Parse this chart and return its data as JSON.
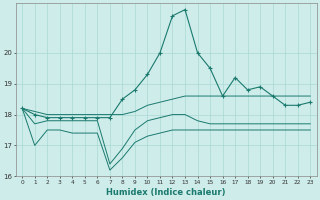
{
  "xlabel": "Humidex (Indice chaleur)",
  "x": [
    0,
    1,
    2,
    3,
    4,
    5,
    6,
    7,
    8,
    9,
    10,
    11,
    12,
    13,
    14,
    15,
    16,
    17,
    18,
    19,
    20,
    21,
    22,
    23
  ],
  "y_main": [
    18.2,
    18.0,
    17.9,
    17.9,
    17.9,
    17.9,
    17.9,
    17.9,
    18.5,
    18.8,
    19.3,
    20.0,
    21.2,
    21.4,
    20.0,
    19.5,
    18.6,
    19.2,
    18.8,
    18.9,
    18.6,
    18.3,
    18.3,
    18.4
  ],
  "y_lo1": [
    18.2,
    17.7,
    17.8,
    17.8,
    17.8,
    17.8,
    17.8,
    16.4,
    16.9,
    17.5,
    17.8,
    17.9,
    18.0,
    18.0,
    17.8,
    17.7,
    17.7,
    17.7,
    17.7,
    17.7,
    17.7,
    17.7,
    17.7,
    17.7
  ],
  "y_lo2": [
    18.2,
    17.0,
    17.5,
    17.5,
    17.4,
    17.4,
    17.4,
    16.2,
    16.6,
    17.1,
    17.3,
    17.4,
    17.5,
    17.5,
    17.5,
    17.5,
    17.5,
    17.5,
    17.5,
    17.5,
    17.5,
    17.5,
    17.5,
    17.5
  ],
  "y_hi": [
    18.2,
    18.1,
    18.0,
    18.0,
    18.0,
    18.0,
    18.0,
    18.0,
    18.0,
    18.1,
    18.3,
    18.4,
    18.5,
    18.6,
    18.6,
    18.6,
    18.6,
    18.6,
    18.6,
    18.6,
    18.6,
    18.6,
    18.6,
    18.6
  ],
  "color": "#1a7a6e",
  "bg_color": "#ceecea",
  "grid_color": "#aad8d4",
  "ylim": [
    16.0,
    21.6
  ],
  "yticks": [
    16,
    17,
    18,
    19,
    20
  ],
  "xticks": [
    0,
    1,
    2,
    3,
    4,
    5,
    6,
    7,
    8,
    9,
    10,
    11,
    12,
    13,
    14,
    15,
    16,
    17,
    18,
    19,
    20,
    21,
    22,
    23
  ]
}
